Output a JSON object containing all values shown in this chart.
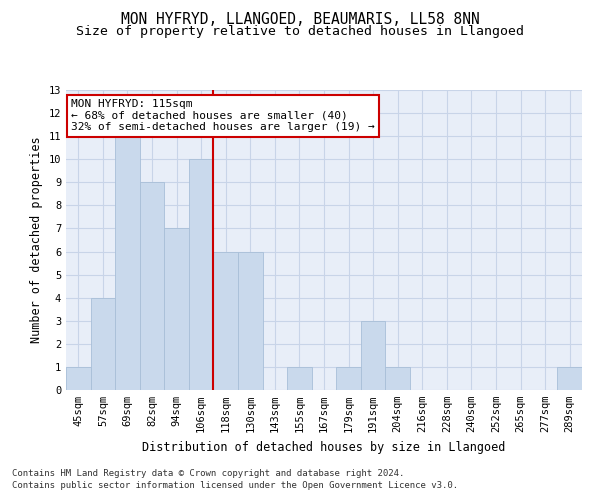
{
  "title1": "MON HYFRYD, LLANGOED, BEAUMARIS, LL58 8NN",
  "title2": "Size of property relative to detached houses in Llangoed",
  "xlabel": "Distribution of detached houses by size in Llangoed",
  "ylabel": "Number of detached properties",
  "categories": [
    "45sqm",
    "57sqm",
    "69sqm",
    "82sqm",
    "94sqm",
    "106sqm",
    "118sqm",
    "130sqm",
    "143sqm",
    "155sqm",
    "167sqm",
    "179sqm",
    "191sqm",
    "204sqm",
    "216sqm",
    "228sqm",
    "240sqm",
    "252sqm",
    "265sqm",
    "277sqm",
    "289sqm"
  ],
  "values": [
    1,
    4,
    11,
    9,
    7,
    10,
    6,
    6,
    0,
    1,
    0,
    1,
    3,
    1,
    0,
    0,
    0,
    0,
    0,
    0,
    1
  ],
  "bar_color": "#c9d9ec",
  "bar_edge_color": "#a8bfd8",
  "ylim": [
    0,
    13
  ],
  "yticks": [
    0,
    1,
    2,
    3,
    4,
    5,
    6,
    7,
    8,
    9,
    10,
    11,
    12,
    13
  ],
  "red_line_index": 6,
  "red_line_color": "#cc0000",
  "annotation_line1": "MON HYFRYD: 115sqm",
  "annotation_line2": "← 68% of detached houses are smaller (40)",
  "annotation_line3": "32% of semi-detached houses are larger (19) →",
  "annotation_box_color": "#ffffff",
  "annotation_box_edge": "#cc0000",
  "footer1": "Contains HM Land Registry data © Crown copyright and database right 2024.",
  "footer2": "Contains public sector information licensed under the Open Government Licence v3.0.",
  "bg_color": "#ffffff",
  "plot_bg_color": "#e8eef8",
  "grid_color": "#c8d4e8",
  "title1_fontsize": 10.5,
  "title2_fontsize": 9.5,
  "xlabel_fontsize": 8.5,
  "ylabel_fontsize": 8.5,
  "tick_fontsize": 7.5,
  "ann_fontsize": 8.0,
  "footer_fontsize": 6.5
}
